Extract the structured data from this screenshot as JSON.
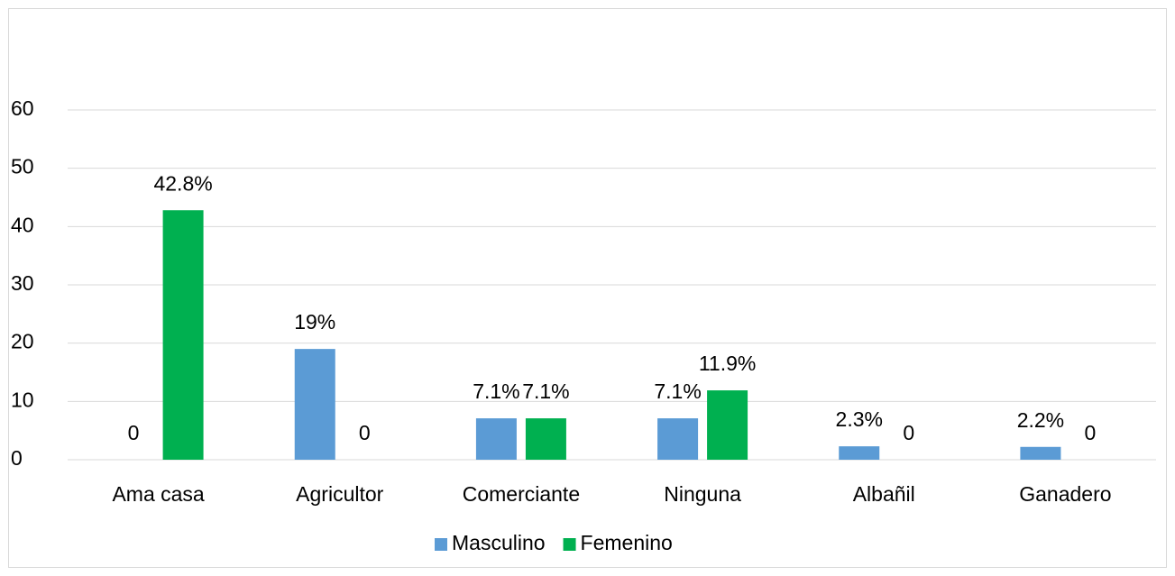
{
  "chart_data": {
    "type": "bar",
    "categories": [
      "Ama casa",
      "Agricultor",
      "Comerciante",
      "Ninguna",
      "Albañil",
      "Ganadero"
    ],
    "series": [
      {
        "name": "Masculino",
        "color": "#5b9bd5",
        "values": [
          0,
          19,
          7.1,
          7.1,
          2.3,
          2.2
        ],
        "value_labels": [
          "0",
          "19%",
          "7.1%",
          "7.1%",
          "2.3%",
          "2.2%"
        ]
      },
      {
        "name": "Femenino",
        "color": "#00b050",
        "values": [
          42.8,
          0,
          7.1,
          11.9,
          0,
          0
        ],
        "value_labels": [
          "42.8%",
          "0",
          "7.1%",
          "11.9%",
          "0",
          "0"
        ]
      }
    ],
    "ylim": [
      0,
      60
    ],
    "yticks": [
      0,
      10,
      20,
      30,
      40,
      50,
      60
    ],
    "grid": true,
    "legend": "bottom"
  }
}
